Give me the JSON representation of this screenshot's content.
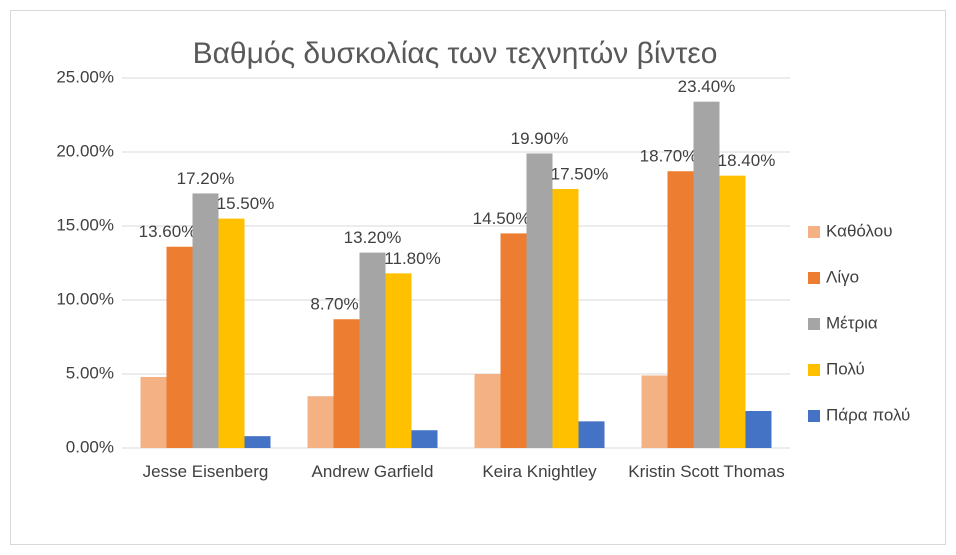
{
  "chart_data": {
    "type": "bar",
    "title": "Βαθμός δυσκολίας των τεχνητών βίντεο",
    "categories": [
      "Jesse Eisenberg",
      "Andrew Garfield",
      "Keira Knightley",
      "Kristin Scott Thomas"
    ],
    "series": [
      {
        "name": "Καθόλου",
        "color": "#f4b183",
        "values": [
          4.8,
          3.5,
          5.0,
          4.9
        ]
      },
      {
        "name": "Λίγο",
        "color": "#ed7d31",
        "values": [
          13.6,
          8.7,
          14.5,
          18.7
        ],
        "value_labels": [
          "13.60%",
          "8.70%",
          "14.50%",
          "18.70%"
        ]
      },
      {
        "name": "Μέτρια",
        "color": "#a5a5a5",
        "values": [
          17.2,
          13.2,
          19.9,
          23.4
        ],
        "value_labels": [
          "17.20%",
          "13.20%",
          "19.90%",
          "23.40%"
        ]
      },
      {
        "name": "Πολύ",
        "color": "#ffc000",
        "values": [
          15.5,
          11.8,
          17.5,
          18.4
        ],
        "value_labels": [
          "15.50%",
          "11.80%",
          "17.50%",
          "18.40%"
        ]
      },
      {
        "name": "Πάρα πολύ",
        "color": "#4472c4",
        "values": [
          0.8,
          1.2,
          1.8,
          2.5
        ]
      }
    ],
    "ylim": [
      0,
      25
    ],
    "yticks": [
      {
        "value": 0,
        "label": "0.00%"
      },
      {
        "value": 5,
        "label": "5.00%"
      },
      {
        "value": 10,
        "label": "10.00%"
      },
      {
        "value": 15,
        "label": "15.00%"
      },
      {
        "value": 20,
        "label": "20.00%"
      },
      {
        "value": 25,
        "label": "25.00%"
      }
    ],
    "grid": true,
    "legend": "right"
  }
}
